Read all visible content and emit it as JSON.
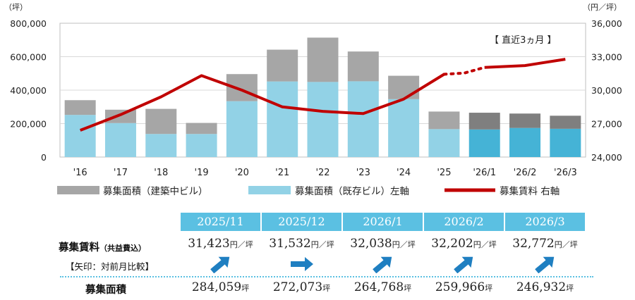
{
  "chart_data": {
    "type": "bar",
    "categories": [
      "'16",
      "'17",
      "'18",
      "'19",
      "'20",
      "'21",
      "'22",
      "'23",
      "'24",
      "'25",
      "'26/1",
      "'26/2",
      "'26/3"
    ],
    "series": [
      {
        "name": "募集面積（建築中ビル）",
        "kind": "bar-stack-top",
        "values": [
          88000,
          80000,
          150000,
          66000,
          162000,
          190000,
          265000,
          178000,
          140000,
          105000,
          100000,
          86000,
          78000
        ]
      },
      {
        "name": "募集面積（既存ビル）左軸",
        "kind": "bar-stack-bottom",
        "values": [
          252000,
          203000,
          138000,
          138000,
          334000,
          452000,
          449000,
          453000,
          346000,
          167000,
          165000,
          174000,
          169000
        ]
      },
      {
        "name": "募集賃料 右軸",
        "kind": "line",
        "axis": "right",
        "values": [
          26400,
          27800,
          29400,
          31300,
          30000,
          28500,
          28100,
          27900,
          29200,
          31423,
          32038,
          32202,
          32772
        ]
      }
    ],
    "dotted_segment": {
      "from": "'25",
      "to": "'26/1",
      "via": 31532
    },
    "left_axis": {
      "unit": "（坪）",
      "ylim": [
        0,
        800000
      ],
      "ticks": [
        "0",
        "200,000",
        "400,000",
        "600,000",
        "800,000"
      ]
    },
    "right_axis": {
      "unit": "（円／坪）",
      "ylim": [
        24000,
        36000
      ],
      "ticks": [
        "24,000",
        "27,000",
        "30,000",
        "33,000",
        "36,000"
      ]
    },
    "annotation": "【 直近3ヵ月 】",
    "legend": [
      {
        "label": "募集面積（建築中ビル）",
        "color": "#a6a6a6"
      },
      {
        "label": "募集面積（既存ビル）左軸",
        "color": "#92d2e6"
      },
      {
        "label": "募集賃料 右軸",
        "color": "#c00000"
      }
    ],
    "colors": {
      "construction_bar": "#a6a6a6",
      "construction_bar_recent": "#7f7f7f",
      "existing_bar": "#92d2e6",
      "existing_bar_recent": "#45b3d6",
      "line": "#c00000"
    }
  },
  "table": {
    "months": [
      "2025/11",
      "2025/12",
      "2026/1",
      "2026/2",
      "2026/3"
    ],
    "rent_label": "募集賃料",
    "rent_label_sub": "（共益費込）",
    "arrow_note": "【矢印：対前月比較】",
    "area_label": "募集面積",
    "rent_values": [
      "31,423",
      "31,532",
      "32,038",
      "32,202",
      "32,772"
    ],
    "rent_unit": "円／坪",
    "arrows": [
      "up",
      "right",
      "up",
      "up",
      "up"
    ],
    "area_values": [
      "284,059",
      "272,073",
      "264,768",
      "259,966",
      "246,932"
    ],
    "area_unit": "坪",
    "header_color": "#5bc0e2",
    "arrow_color": "#1f7fc1"
  }
}
